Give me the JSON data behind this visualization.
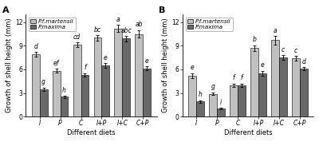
{
  "panel_A": {
    "title": "A",
    "categories": [
      "I",
      "P",
      "C",
      "I+P",
      "I+C",
      "C+P"
    ],
    "martensii_values": [
      7.9,
      5.8,
      9.1,
      10.0,
      11.2,
      10.5
    ],
    "maxima_values": [
      3.5,
      2.5,
      5.3,
      6.5,
      9.9,
      6.1
    ],
    "martensii_errors": [
      0.3,
      0.25,
      0.3,
      0.35,
      0.45,
      0.5
    ],
    "maxima_errors": [
      0.2,
      0.15,
      0.2,
      0.3,
      0.35,
      0.25
    ],
    "martensii_labels": [
      "d",
      "ef",
      "cd",
      "bc",
      "a",
      "ab"
    ],
    "maxima_labels": [
      "g",
      "h",
      "f",
      "e",
      "abc",
      "e"
    ],
    "ylabel": "Growth of shell height (mm)",
    "xlabel": "Different diets",
    "ylim": [
      0,
      13
    ]
  },
  "panel_B": {
    "title": "B",
    "categories": [
      "I",
      "P",
      "C",
      "I+P",
      "I+C",
      "C+P"
    ],
    "martensii_values": [
      5.2,
      2.9,
      4.0,
      8.7,
      9.7,
      7.4
    ],
    "maxima_values": [
      1.9,
      1.0,
      4.0,
      5.5,
      7.5,
      6.1
    ],
    "martensii_errors": [
      0.3,
      0.2,
      0.2,
      0.35,
      0.55,
      0.3
    ],
    "maxima_errors": [
      0.15,
      0.1,
      0.2,
      0.3,
      0.3,
      0.2
    ],
    "martensii_labels": [
      "e",
      "g",
      "f",
      "b",
      "a",
      "c"
    ],
    "maxima_labels": [
      "h",
      "i",
      "f",
      "e",
      "c",
      "d"
    ],
    "ylabel": "Growth of shell height (mm)",
    "xlabel": "Different diets",
    "ylim": [
      0,
      13
    ]
  },
  "color_martensii": "#c0c0c0",
  "color_maxima": "#696969",
  "legend_martensii": "P.f.martensii",
  "legend_maxima": "P.maxima",
  "bar_width": 0.38,
  "tick_fontsize": 5.5,
  "label_fontsize": 6.0,
  "legend_fontsize": 5.2,
  "panel_label_fontsize": 8,
  "letter_fontsize": 5.5
}
